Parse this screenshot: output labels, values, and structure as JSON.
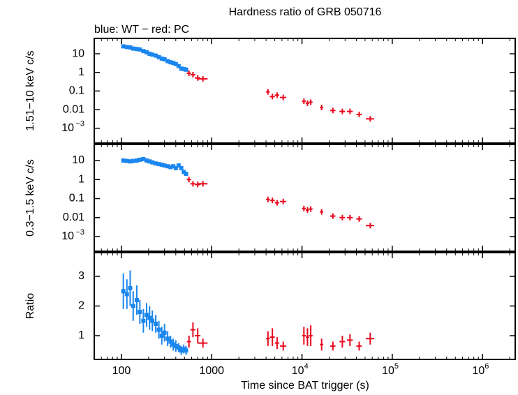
{
  "chart_data": [
    {
      "type": "scatter",
      "title": "Hardness ratio of GRB 050716",
      "subtitle": "blue: WT − red: PC",
      "ylabel": "1.51−10 keV c/s",
      "xlog": true,
      "ylog": true,
      "xlim": [
        50,
        2300000
      ],
      "ylim": [
        0.00016,
        67
      ],
      "xticks": [
        100,
        1000,
        {
          "value": 10000,
          "label": "10",
          "exponent": "4"
        },
        {
          "value": 100000,
          "label": "10",
          "exponent": "5"
        },
        {
          "value": 1000000,
          "label": "10",
          "exponent": "6"
        }
      ],
      "yticks": [
        10,
        1,
        0.1,
        0.01,
        {
          "value": 0.001,
          "label": "10",
          "exponent": "−3"
        }
      ],
      "series": [
        {
          "color": "#1a86ee",
          "x": [
            105,
            115,
            125,
            135,
            148,
            160,
            175,
            190,
            205,
            220,
            240,
            260,
            280,
            300,
            325,
            350,
            375,
            400,
            430,
            460,
            490,
            520
          ],
          "values": [
            25,
            23,
            22,
            19,
            18,
            17,
            14,
            12,
            10,
            9,
            8,
            6.5,
            5.5,
            5,
            4,
            3.5,
            3.2,
            2.8,
            2.2,
            1.6,
            1.5,
            1.4
          ]
        },
        {
          "color": "#e8081c",
          "x": [
            560,
            620,
            700,
            800,
            4200,
            4700,
            5300,
            6200,
            10500,
            11500,
            12500,
            16500,
            22000,
            28000,
            34000,
            43000,
            57000
          ],
          "xerr": [
            30,
            40,
            50,
            100,
            200,
            300,
            300,
            500,
            500,
            500,
            600,
            700,
            1500,
            2000,
            2500,
            3000,
            6000
          ],
          "values": [
            0.9,
            0.75,
            0.5,
            0.45,
            0.09,
            0.05,
            0.06,
            0.045,
            0.028,
            0.022,
            0.025,
            0.013,
            0.009,
            0.008,
            0.008,
            0.0055,
            0.0032
          ]
        }
      ]
    },
    {
      "type": "scatter",
      "ylabel": "0.3−1.5 keV c/s",
      "xlog": true,
      "ylog": true,
      "xlim": [
        50,
        2300000
      ],
      "ylim": [
        0.00017,
        70
      ],
      "xticks": [
        100,
        1000,
        {
          "value": 10000,
          "label": "10",
          "exponent": "4"
        },
        {
          "value": 100000,
          "label": "10",
          "exponent": "5"
        },
        {
          "value": 1000000,
          "label": "10",
          "exponent": "6"
        }
      ],
      "yticks": [
        10,
        1,
        0.1,
        0.01,
        {
          "value": 0.001,
          "label": "10",
          "exponent": "−3"
        }
      ],
      "series": [
        {
          "color": "#1a86ee",
          "x": [
            105,
            115,
            125,
            135,
            148,
            160,
            175,
            190,
            205,
            220,
            240,
            260,
            280,
            300,
            325,
            350,
            375,
            400,
            430,
            460,
            490,
            520
          ],
          "values": [
            10,
            9.5,
            9,
            9.5,
            10,
            11,
            12,
            10,
            9,
            8,
            7,
            6.5,
            6,
            5.5,
            5,
            4.5,
            5,
            4,
            5.5,
            4,
            2.5,
            2
          ]
        },
        {
          "color": "#e8081c",
          "x": [
            560,
            620,
            700,
            800,
            4200,
            4700,
            5300,
            6200,
            10500,
            11500,
            12500,
            16500,
            22000,
            28000,
            34000,
            43000,
            57000
          ],
          "xerr": [
            30,
            40,
            50,
            100,
            200,
            300,
            300,
            500,
            500,
            500,
            600,
            700,
            1500,
            2000,
            2500,
            3000,
            6000
          ],
          "values": [
            1.0,
            0.6,
            0.55,
            0.6,
            0.09,
            0.08,
            0.06,
            0.07,
            0.03,
            0.025,
            0.028,
            0.02,
            0.012,
            0.01,
            0.01,
            0.0085,
            0.0038
          ]
        }
      ]
    },
    {
      "type": "scatter",
      "ylabel": "Ratio",
      "xlabel": "Time since BAT trigger (s)",
      "xlog": true,
      "ylog": false,
      "xlim": [
        50,
        2300000
      ],
      "ylim": [
        0.2,
        3.8
      ],
      "xticks": [
        100,
        1000,
        {
          "value": 10000,
          "label": "10",
          "exponent": "4"
        },
        {
          "value": 100000,
          "label": "10",
          "exponent": "5"
        },
        {
          "value": 1000000,
          "label": "10",
          "exponent": "6"
        }
      ],
      "yticks": [
        1,
        2,
        3
      ],
      "series": [
        {
          "color": "#1a86ee",
          "x": [
            105,
            115,
            125,
            135,
            148,
            160,
            175,
            190,
            205,
            220,
            240,
            260,
            280,
            300,
            325,
            350,
            375,
            400,
            430,
            460,
            490,
            520
          ],
          "values": [
            2.5,
            2.4,
            2.6,
            2,
            2.2,
            1.8,
            1.5,
            1.7,
            1.6,
            1.5,
            1.4,
            1.2,
            1.0,
            1.1,
            0.9,
            0.8,
            0.7,
            0.65,
            0.6,
            0.5,
            0.55,
            0.5
          ],
          "yerr": [
            0.6,
            0.5,
            0.6,
            0.5,
            0.5,
            0.4,
            0.4,
            0.4,
            0.4,
            0.35,
            0.3,
            0.3,
            0.3,
            0.3,
            0.25,
            0.2,
            0.2,
            0.2,
            0.15,
            0.15,
            0.15,
            0.15
          ]
        },
        {
          "color": "#e8081c",
          "x": [
            560,
            620,
            700,
            800,
            4200,
            4700,
            5300,
            6200,
            10500,
            11500,
            12500,
            16500,
            22000,
            28000,
            34000,
            43000,
            57000
          ],
          "xerr": [
            30,
            40,
            50,
            100,
            200,
            300,
            300,
            500,
            500,
            500,
            600,
            700,
            1500,
            2000,
            2500,
            3000,
            6000
          ],
          "values": [
            0.8,
            1.2,
            1.0,
            0.75,
            0.9,
            0.95,
            0.75,
            0.65,
            1.0,
            0.95,
            1.0,
            0.7,
            0.65,
            0.8,
            0.85,
            0.65,
            0.9
          ],
          "yerr": [
            0.2,
            0.25,
            0.25,
            0.15,
            0.25,
            0.3,
            0.2,
            0.15,
            0.3,
            0.3,
            0.35,
            0.2,
            0.15,
            0.2,
            0.2,
            0.15,
            0.2
          ]
        }
      ]
    }
  ]
}
